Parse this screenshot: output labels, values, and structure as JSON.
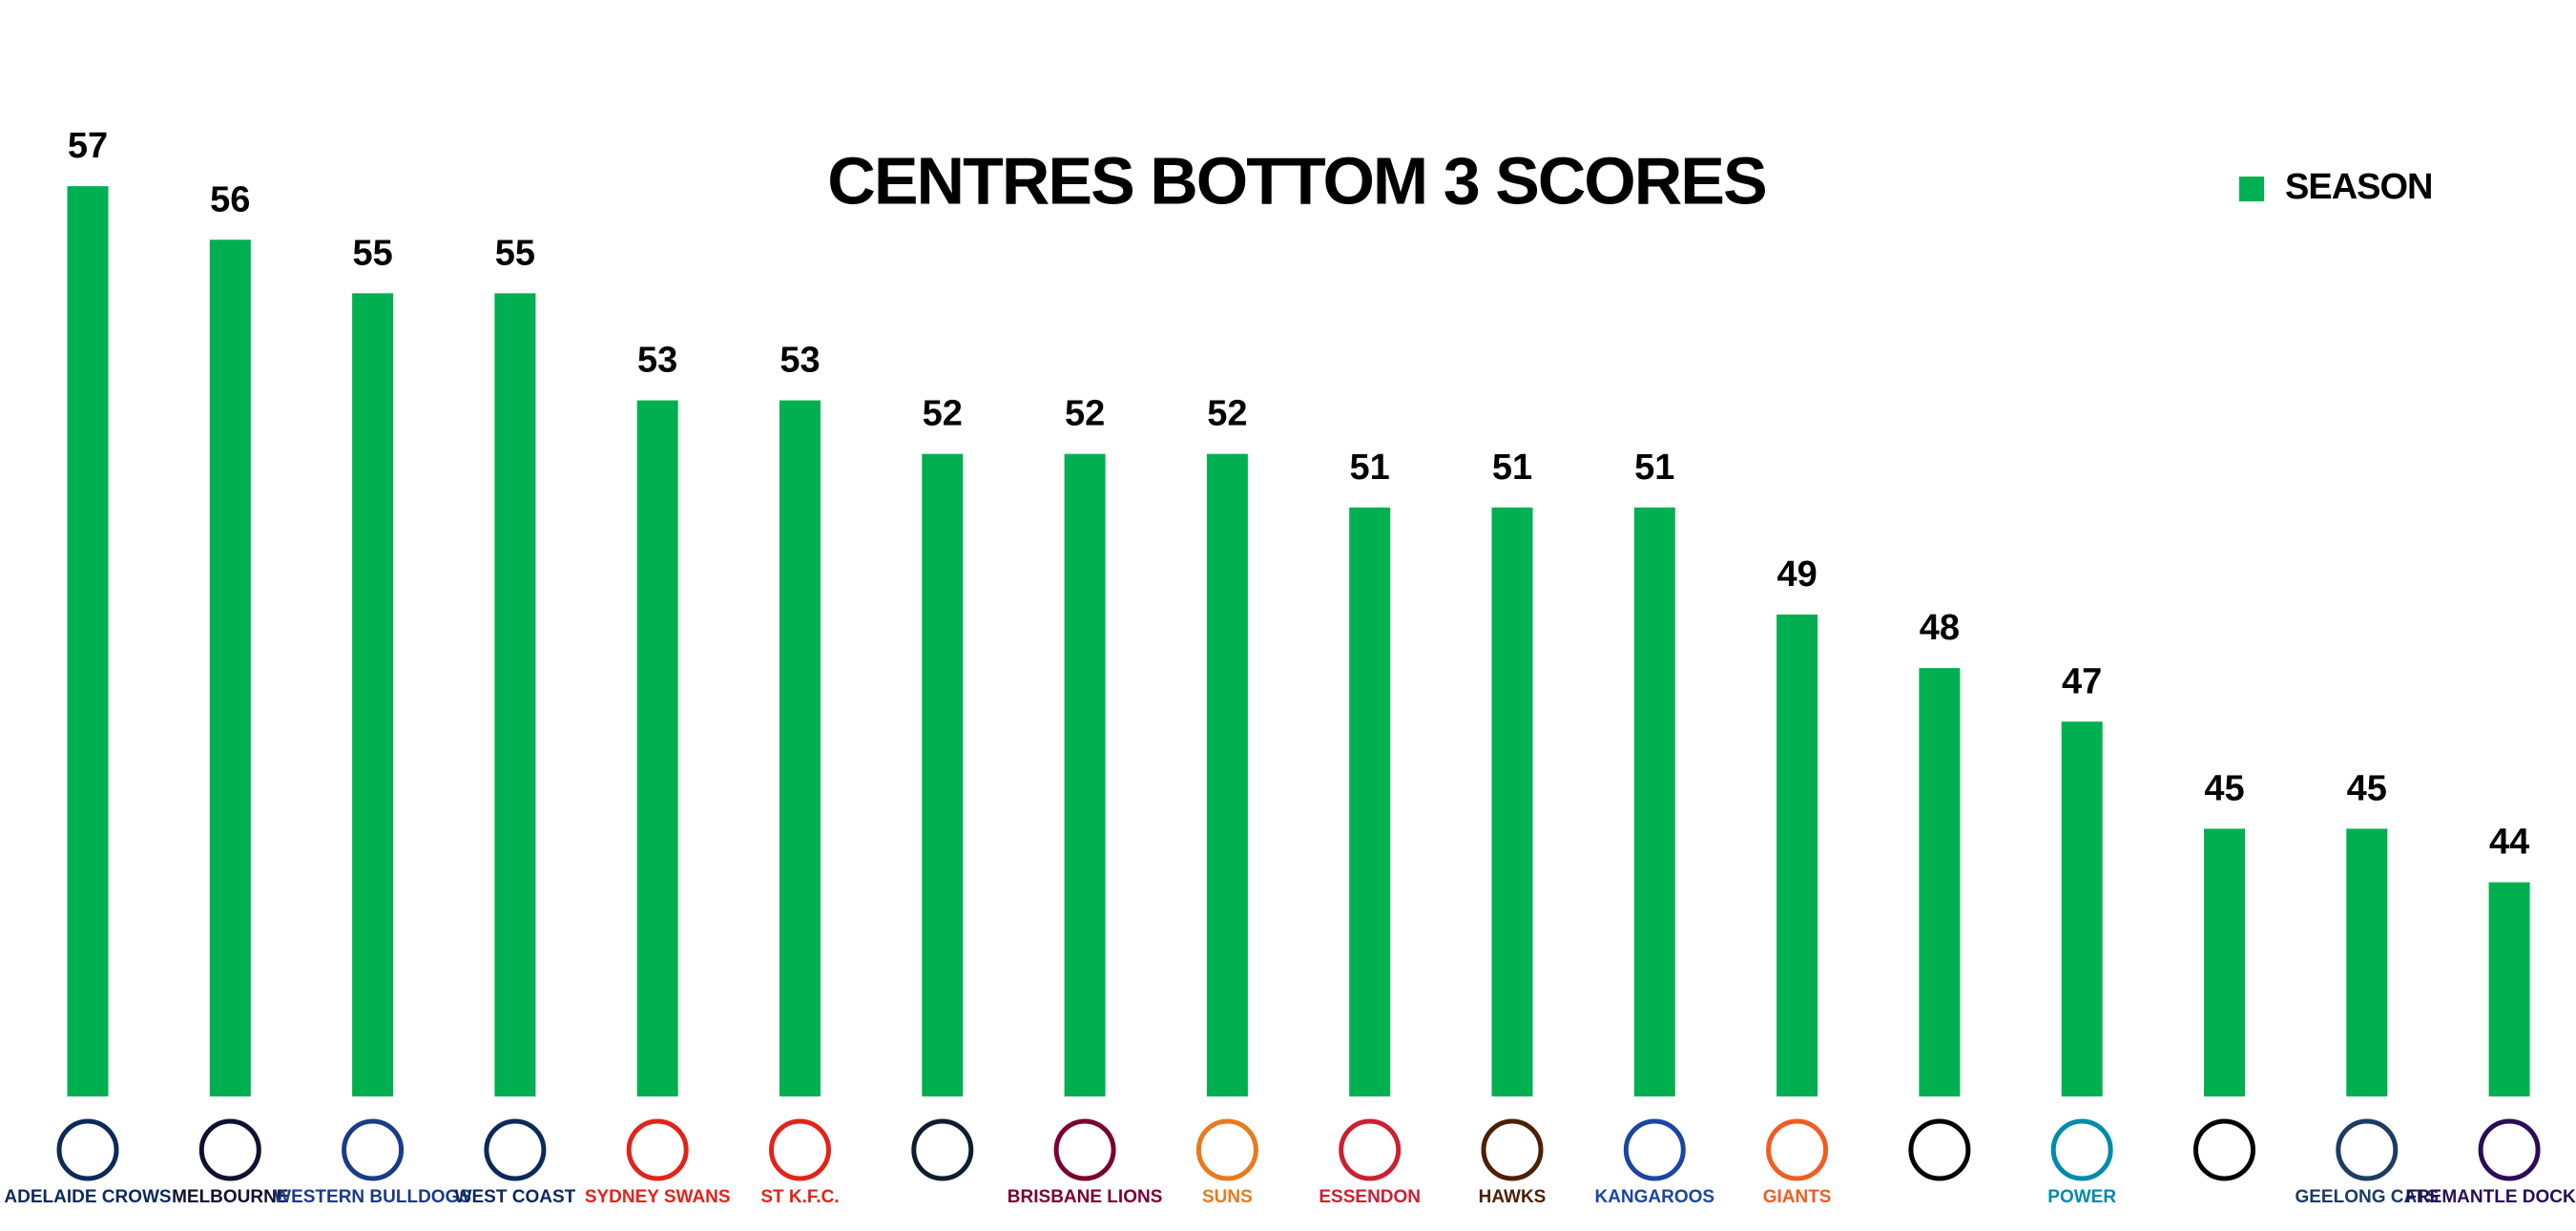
{
  "chart_data": {
    "type": "bar",
    "title": "CENTRES BOTTOM 3 SCORES",
    "categories": [
      "ADELAIDE CROWS",
      "MELBOURNE",
      "WESTERN BULLDOGS",
      "WEST COAST",
      "SYDNEY SWANS",
      "ST K.F.C.",
      null,
      "BRISBANE LIONS",
      "SUNS",
      "ESSENDON",
      "HAWKS",
      "KANGAROOS",
      "GIANTS",
      null,
      "POWER",
      null,
      "GEELONG CATS",
      "FREMANTLE DOCKERS"
    ],
    "series": [
      {
        "name": "SEASON",
        "color": "#00b050",
        "values": [
          57,
          56,
          55,
          55,
          53,
          53,
          52,
          52,
          52,
          51,
          51,
          51,
          49,
          48,
          47,
          45,
          45,
          44
        ]
      }
    ],
    "ylim": [
      40,
      58
    ],
    "legend": "top-right"
  }
}
